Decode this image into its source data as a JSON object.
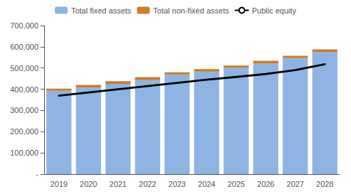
{
  "chart_data": {
    "type": "bar",
    "categories": [
      "2019",
      "2020",
      "2021",
      "2022",
      "2023",
      "2024",
      "2025",
      "2026",
      "2027",
      "2028"
    ],
    "stacked": true,
    "series": [
      {
        "name": "Total fixed assets",
        "type": "bar",
        "color": "#8EB4E3",
        "values": [
          393000,
          408000,
          425000,
          443000,
          470000,
          483000,
          501000,
          521000,
          547000,
          575000
        ]
      },
      {
        "name": "Total non-fixed assets",
        "type": "bar",
        "color": "#C87E2A",
        "values": [
          10000,
          12000,
          13000,
          14000,
          10000,
          12000,
          11000,
          13000,
          11000,
          13000
        ]
      },
      {
        "name": "Public equity",
        "type": "line",
        "color": "#000000",
        "values": [
          370000,
          385000,
          400000,
          415000,
          430000,
          445000,
          458000,
          472000,
          490000,
          518000
        ]
      }
    ],
    "ylim": [
      0,
      700000
    ],
    "yticks": [
      {
        "value": 0,
        "label": "-"
      },
      {
        "value": 100000,
        "label": "100,000"
      },
      {
        "value": 200000,
        "label": "200,000"
      },
      {
        "value": 300000,
        "label": "300,000"
      },
      {
        "value": 400000,
        "label": "400,000"
      },
      {
        "value": 500000,
        "label": "500,000"
      },
      {
        "value": 600000,
        "label": "600,000"
      },
      {
        "value": 700000,
        "label": "700,000"
      }
    ],
    "grid": false,
    "legend": "top"
  }
}
